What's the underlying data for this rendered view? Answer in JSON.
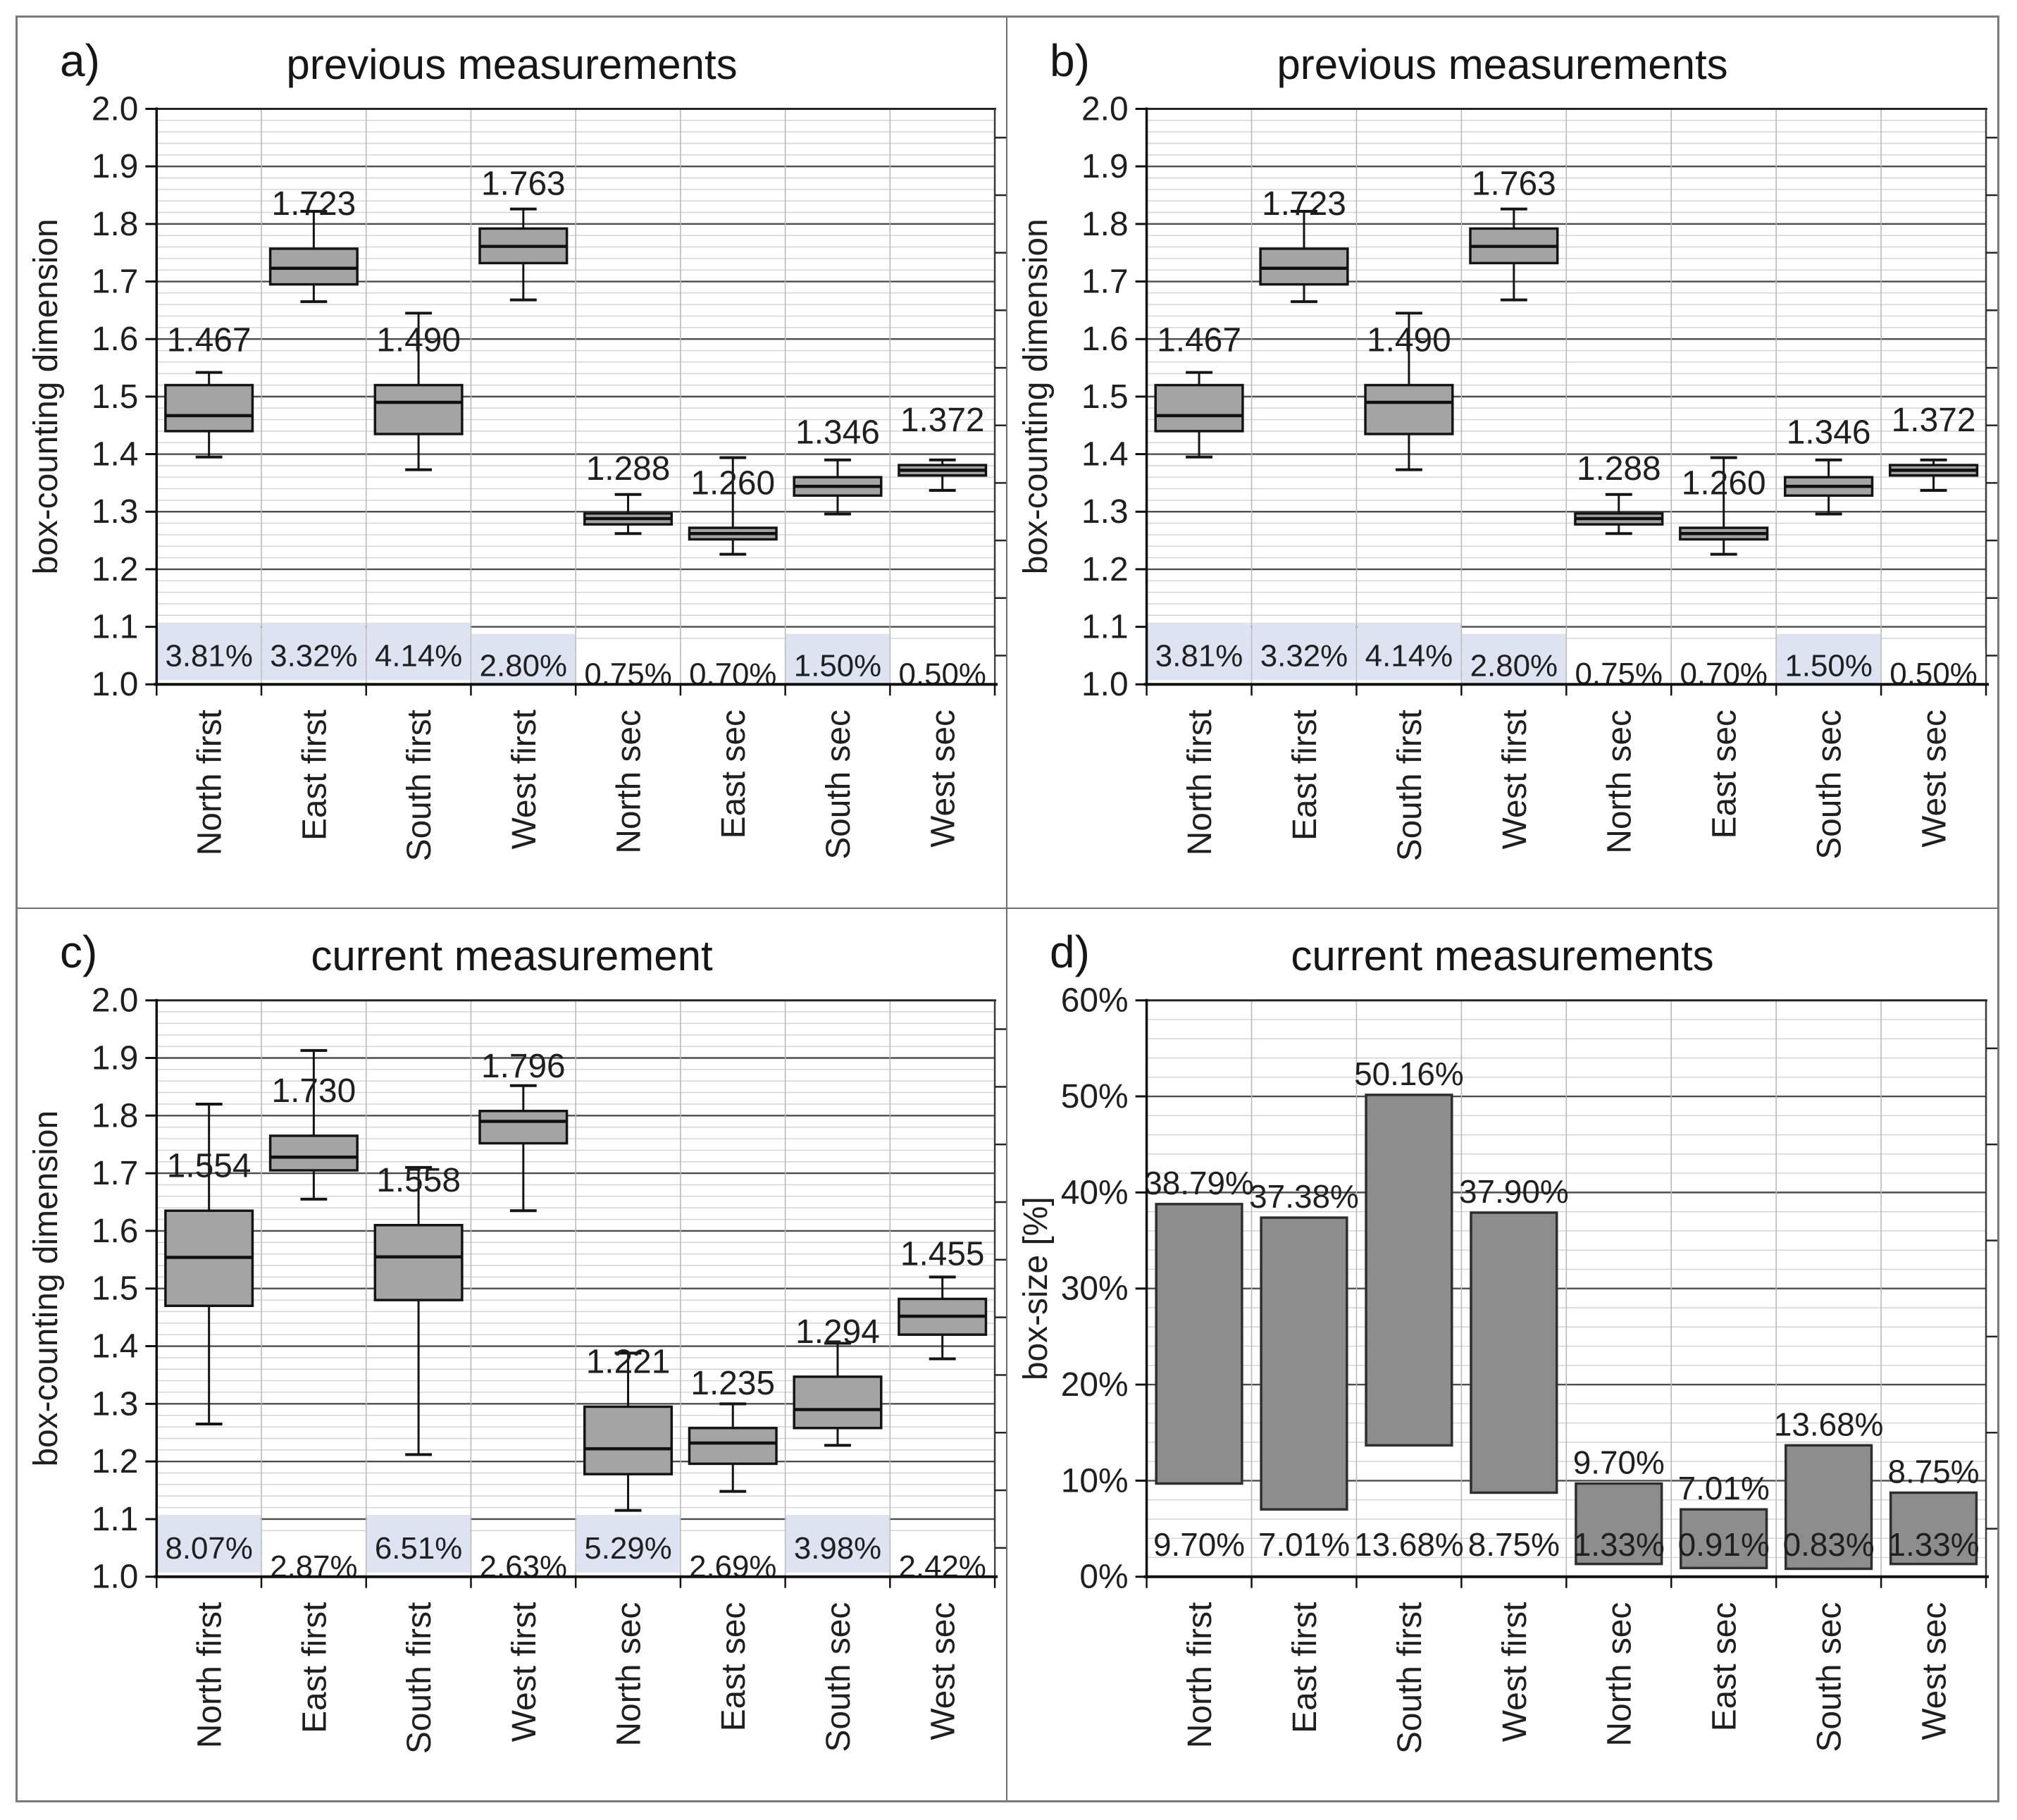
{
  "colors": {
    "text": "#1f1f1f",
    "axis": "#111111",
    "frame": "#7a7a7a",
    "major_grid": "#4d4d4d",
    "minor_grid": "#d2d2d2",
    "vline": "#b6b6b6",
    "box_fill": "#a4a4a4",
    "bar_fill": "#8d8d8d",
    "highlight": "#dde3f1"
  },
  "panels": [
    {
      "letter": "a)",
      "title": "previous measurements"
    },
    {
      "letter": "b)",
      "title": "previous measurements"
    },
    {
      "letter": "c)",
      "title": "current measurement"
    },
    {
      "letter": "d)",
      "title": "current measurements"
    }
  ],
  "chart_data": [
    {
      "id": "a",
      "type": "boxplot",
      "title": "previous measurements",
      "ylabel": "box-counting dimension",
      "ylim": [
        1.0,
        2.0
      ],
      "tick_step": 0.1,
      "minor_step": 0.02,
      "tick_format": "decimal",
      "grid": true,
      "legend": "none",
      "categories": [
        "North first",
        "East first",
        "South first",
        "West first",
        "North sec",
        "East sec",
        "South sec",
        "West sec"
      ],
      "boxes": [
        {
          "category": "North first",
          "mean_label": "1.467",
          "whisker_low": 1.395,
          "q1": 1.44,
          "median": 1.467,
          "q3": 1.52,
          "whisker_high": 1.542,
          "pct": "3.81%",
          "pct_level": 0,
          "pct_highlight": true
        },
        {
          "category": "East first",
          "mean_label": "1.723",
          "whisker_low": 1.665,
          "q1": 1.695,
          "median": 1.723,
          "q3": 1.757,
          "whisker_high": 1.822,
          "pct": "3.32%",
          "pct_level": 0,
          "pct_highlight": true
        },
        {
          "category": "South first",
          "mean_label": "1.490",
          "whisker_low": 1.373,
          "q1": 1.435,
          "median": 1.49,
          "q3": 1.52,
          "whisker_high": 1.645,
          "pct": "4.14%",
          "pct_level": 0,
          "pct_highlight": true
        },
        {
          "category": "West first",
          "mean_label": "1.763",
          "whisker_low": 1.668,
          "q1": 1.732,
          "median": 1.761,
          "q3": 1.792,
          "whisker_high": 1.826,
          "pct": "2.80%",
          "pct_level": 1,
          "pct_highlight": true
        },
        {
          "category": "North sec",
          "mean_label": "1.288",
          "whisker_low": 1.262,
          "q1": 1.278,
          "median": 1.288,
          "q3": 1.297,
          "whisker_high": 1.33,
          "pct": "0.75%",
          "pct_level": 2,
          "pct_highlight": false
        },
        {
          "category": "East sec",
          "mean_label": "1.260",
          "whisker_low": 1.226,
          "q1": 1.252,
          "median": 1.262,
          "q3": 1.272,
          "whisker_high": 1.394,
          "pct": "0.70%",
          "pct_level": 2,
          "pct_highlight": false
        },
        {
          "category": "South sec",
          "mean_label": "1.346",
          "whisker_low": 1.296,
          "q1": 1.328,
          "median": 1.344,
          "q3": 1.36,
          "whisker_high": 1.39,
          "pct": "1.50%",
          "pct_level": 1,
          "pct_highlight": true
        },
        {
          "category": "West sec",
          "mean_label": "1.372",
          "whisker_low": 1.337,
          "q1": 1.363,
          "median": 1.372,
          "q3": 1.381,
          "whisker_high": 1.39,
          "pct": "0.50%",
          "pct_level": 2,
          "pct_highlight": false
        }
      ]
    },
    {
      "id": "b",
      "type": "boxplot",
      "title": "previous measurements",
      "ylabel": "box-counting dimension",
      "ylim": [
        1.0,
        2.0
      ],
      "tick_step": 0.1,
      "minor_step": 0.02,
      "tick_format": "decimal",
      "grid": true,
      "legend": "none",
      "categories": [
        "North first",
        "East first",
        "South first",
        "West first",
        "North sec",
        "East sec",
        "South sec",
        "West sec"
      ],
      "boxes": [
        {
          "category": "North first",
          "mean_label": "1.467",
          "whisker_low": 1.395,
          "q1": 1.44,
          "median": 1.467,
          "q3": 1.52,
          "whisker_high": 1.542,
          "pct": "3.81%",
          "pct_level": 0,
          "pct_highlight": true
        },
        {
          "category": "East first",
          "mean_label": "1.723",
          "whisker_low": 1.665,
          "q1": 1.695,
          "median": 1.723,
          "q3": 1.757,
          "whisker_high": 1.822,
          "pct": "3.32%",
          "pct_level": 0,
          "pct_highlight": true
        },
        {
          "category": "South first",
          "mean_label": "1.490",
          "whisker_low": 1.373,
          "q1": 1.435,
          "median": 1.49,
          "q3": 1.52,
          "whisker_high": 1.645,
          "pct": "4.14%",
          "pct_level": 0,
          "pct_highlight": true
        },
        {
          "category": "West first",
          "mean_label": "1.763",
          "whisker_low": 1.668,
          "q1": 1.732,
          "median": 1.761,
          "q3": 1.792,
          "whisker_high": 1.826,
          "pct": "2.80%",
          "pct_level": 1,
          "pct_highlight": true
        },
        {
          "category": "North sec",
          "mean_label": "1.288",
          "whisker_low": 1.262,
          "q1": 1.278,
          "median": 1.288,
          "q3": 1.297,
          "whisker_high": 1.33,
          "pct": "0.75%",
          "pct_level": 2,
          "pct_highlight": false
        },
        {
          "category": "East sec",
          "mean_label": "1.260",
          "whisker_low": 1.226,
          "q1": 1.252,
          "median": 1.262,
          "q3": 1.272,
          "whisker_high": 1.394,
          "pct": "0.70%",
          "pct_level": 2,
          "pct_highlight": false
        },
        {
          "category": "South sec",
          "mean_label": "1.346",
          "whisker_low": 1.296,
          "q1": 1.328,
          "median": 1.344,
          "q3": 1.36,
          "whisker_high": 1.39,
          "pct": "1.50%",
          "pct_level": 1,
          "pct_highlight": true
        },
        {
          "category": "West sec",
          "mean_label": "1.372",
          "whisker_low": 1.337,
          "q1": 1.363,
          "median": 1.372,
          "q3": 1.381,
          "whisker_high": 1.39,
          "pct": "0.50%",
          "pct_level": 2,
          "pct_highlight": false
        }
      ]
    },
    {
      "id": "c",
      "type": "boxplot",
      "title": "current measurement",
      "ylabel": "box-counting dimension",
      "ylim": [
        1.0,
        2.0
      ],
      "tick_step": 0.1,
      "minor_step": 0.02,
      "tick_format": "decimal",
      "grid": true,
      "legend": "none",
      "categories": [
        "North first",
        "East first",
        "South first",
        "West first",
        "North sec",
        "East sec",
        "South sec",
        "West sec"
      ],
      "boxes": [
        {
          "category": "North first",
          "mean_label": "1.554",
          "whisker_low": 1.265,
          "q1": 1.47,
          "median": 1.554,
          "q3": 1.635,
          "whisker_high": 1.82,
          "pct": "8.07%",
          "pct_level": 0,
          "pct_highlight": true
        },
        {
          "category": "East first",
          "mean_label": "1.730",
          "whisker_low": 1.655,
          "q1": 1.705,
          "median": 1.728,
          "q3": 1.765,
          "whisker_high": 1.913,
          "pct": "2.87%",
          "pct_level": 2,
          "pct_highlight": false
        },
        {
          "category": "South first",
          "mean_label": "1.558",
          "whisker_low": 1.212,
          "q1": 1.48,
          "median": 1.555,
          "q3": 1.61,
          "whisker_high": 1.71,
          "pct": "6.51%",
          "pct_level": 0,
          "pct_highlight": true
        },
        {
          "category": "West first",
          "mean_label": "1.796",
          "whisker_low": 1.635,
          "q1": 1.752,
          "median": 1.79,
          "q3": 1.808,
          "whisker_high": 1.852,
          "pct": "2.63%",
          "pct_level": 2,
          "pct_highlight": false
        },
        {
          "category": "North sec",
          "mean_label": "1.221",
          "whisker_low": 1.115,
          "q1": 1.178,
          "median": 1.222,
          "q3": 1.295,
          "whisker_high": 1.388,
          "pct": "5.29%",
          "pct_level": 0,
          "pct_highlight": true
        },
        {
          "category": "East sec",
          "mean_label": "1.235",
          "whisker_low": 1.148,
          "q1": 1.196,
          "median": 1.232,
          "q3": 1.258,
          "whisker_high": 1.3,
          "pct": "2.69%",
          "pct_level": 2,
          "pct_highlight": false
        },
        {
          "category": "South sec",
          "mean_label": "1.294",
          "whisker_low": 1.228,
          "q1": 1.258,
          "median": 1.29,
          "q3": 1.347,
          "whisker_high": 1.405,
          "pct": "3.98%",
          "pct_level": 0,
          "pct_highlight": true
        },
        {
          "category": "West sec",
          "mean_label": "1.455",
          "whisker_low": 1.378,
          "q1": 1.42,
          "median": 1.452,
          "q3": 1.482,
          "whisker_high": 1.52,
          "pct": "2.42%",
          "pct_level": 2,
          "pct_highlight": false
        }
      ]
    },
    {
      "id": "d",
      "type": "floating-bar",
      "title": "current measurements",
      "ylabel": "box-size [%]",
      "ylim": [
        0,
        60
      ],
      "tick_step": 10,
      "minor_step": 2,
      "tick_format": "percent",
      "grid": true,
      "legend": "none",
      "categories": [
        "North first",
        "East first",
        "South first",
        "West first",
        "North sec",
        "East sec",
        "South sec",
        "West sec"
      ],
      "bars": [
        {
          "category": "North first",
          "low": 9.7,
          "high": 38.79,
          "label_top": "38.79%",
          "label_bottom": "9.70%"
        },
        {
          "category": "East first",
          "low": 7.01,
          "high": 37.38,
          "label_top": "37.38%",
          "label_bottom": "7.01%"
        },
        {
          "category": "South first",
          "low": 13.68,
          "high": 50.16,
          "label_top": "50.16%",
          "label_bottom": "13.68%"
        },
        {
          "category": "West first",
          "low": 8.75,
          "high": 37.9,
          "label_top": "37.90%",
          "label_bottom": "8.75%"
        },
        {
          "category": "North sec",
          "low": 1.33,
          "high": 9.7,
          "label_top": "9.70%",
          "label_bottom": "1.33%"
        },
        {
          "category": "East sec",
          "low": 0.91,
          "high": 7.01,
          "label_top": "7.01%",
          "label_bottom": "0.91%"
        },
        {
          "category": "South sec",
          "low": 0.83,
          "high": 13.68,
          "label_top": "13.68%",
          "label_bottom": "0.83%"
        },
        {
          "category": "West sec",
          "low": 1.33,
          "high": 8.75,
          "label_top": "8.75%",
          "label_bottom": "1.33%"
        }
      ]
    }
  ]
}
